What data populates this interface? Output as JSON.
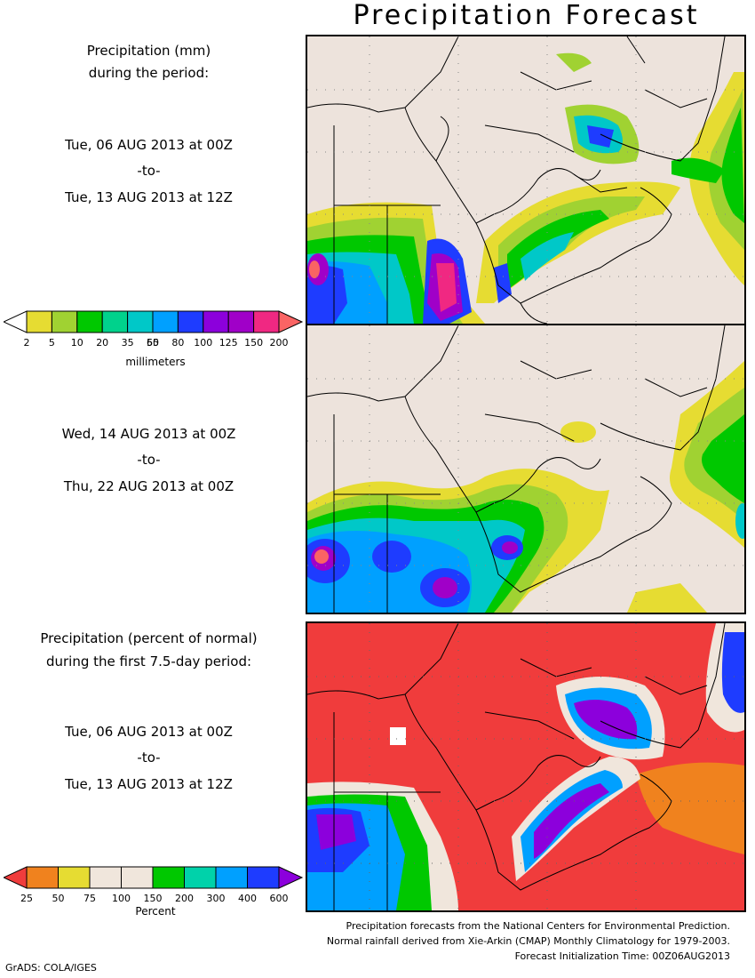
{
  "title": "Precipitation Forecast",
  "panel1": {
    "heading_line1": "Precipitation (mm)",
    "heading_line2": "during the period:",
    "start": "Tue, 06 AUG 2013 at 00Z",
    "to": "-to-",
    "end": "Tue, 13 AUG 2013 at 12Z"
  },
  "panel2": {
    "start": "Wed, 14 AUG 2013 at 00Z",
    "to": "-to-",
    "end": "Thu, 22 AUG 2013 at 00Z"
  },
  "panel3": {
    "heading_line1": "Precipitation (percent of normal)",
    "heading_line2": "during the first 7.5-day period:",
    "start": "Tue, 06 AUG 2013 at 00Z",
    "to": "-to-",
    "end": "Tue, 13 AUG 2013 at 12Z"
  },
  "colorbar_mm": {
    "labels": [
      "2",
      "5",
      "10",
      "20",
      "35",
      "50",
      "65",
      "80",
      "100",
      "125",
      "150",
      "200"
    ],
    "colors": [
      "#ffffff",
      "#e6dc32",
      "#a0d232",
      "#00c800",
      "#00d28c",
      "#00c8c8",
      "#00a0ff",
      "#1e3cff",
      "#8c00dc",
      "#a000c8",
      "#f02882",
      "#fa6464"
    ],
    "unit": "millimeters"
  },
  "colorbar_pct": {
    "labels": [
      "25",
      "50",
      "75",
      "100",
      "150",
      "200",
      "300",
      "400",
      "600"
    ],
    "colors": [
      "#f03c3c",
      "#f0821e",
      "#e6dc32",
      "#f0e6dc",
      "#f0e6dc",
      "#00c800",
      "#00d2aa",
      "#00a0ff",
      "#1e3cff",
      "#8c00dc"
    ],
    "unit": "Percent"
  },
  "footer": {
    "line1": "Precipitation forecasts from the National Centers for Environmental Prediction.",
    "line2": "Normal rainfall derived from Xie-Arkin (CMAP) Monthly Climatology for 1979-2003.",
    "line3": "Forecast Initialization Time: 00Z06AUG2013"
  },
  "credit": "GrADS: COLA/IGES",
  "colors": {
    "land": "#ede3dc",
    "red_below_normal": "#f03c3c"
  }
}
